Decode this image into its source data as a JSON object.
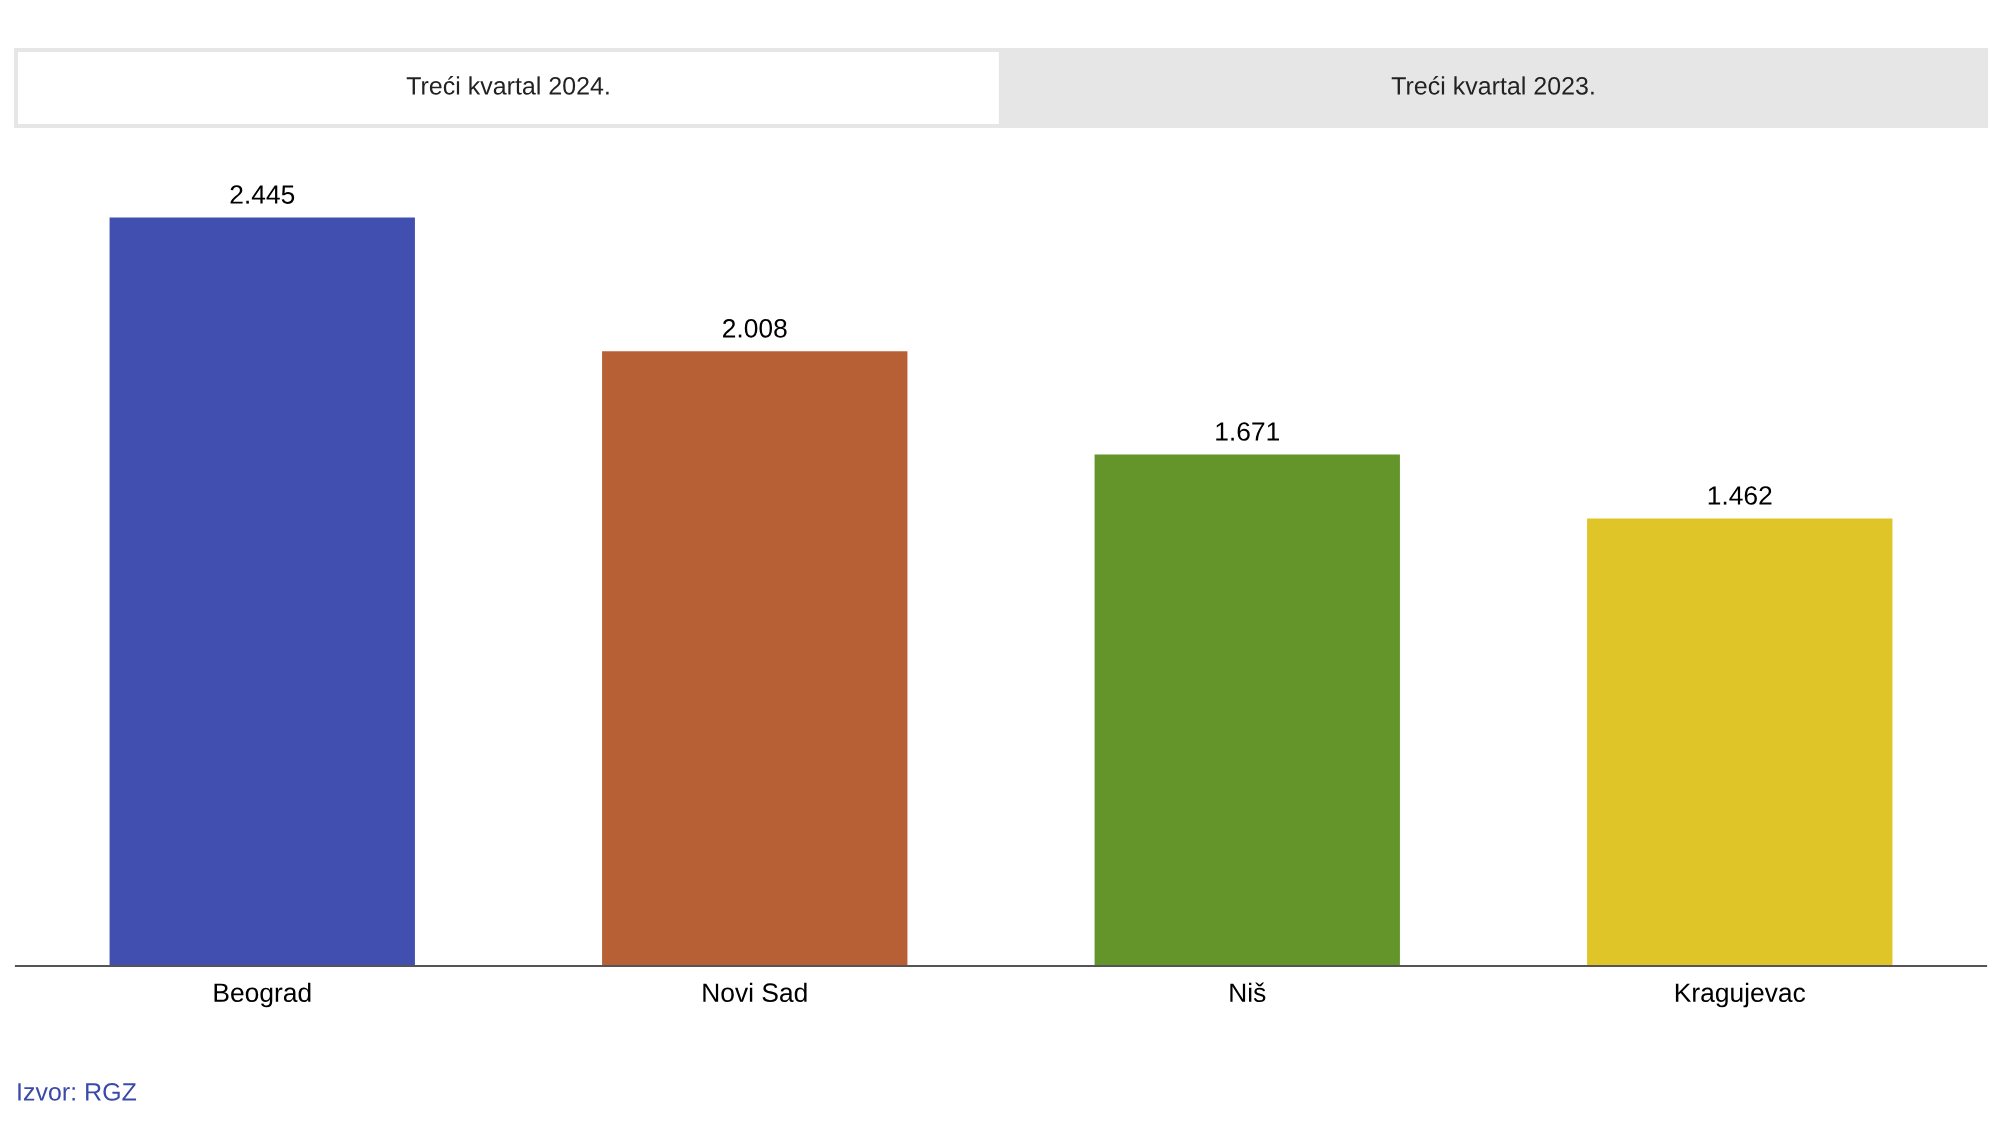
{
  "chart_data": {
    "type": "bar",
    "categories": [
      "Beograd",
      "Novi Sad",
      "Niš",
      "Kragujevac"
    ],
    "values": [
      2445,
      2008,
      1671,
      1462
    ],
    "value_labels": [
      "2.445",
      "2.008",
      "1.671",
      "1.462"
    ],
    "colors": [
      "#404fb0",
      "#b86035",
      "#64952a",
      "#dfc527"
    ],
    "annotations": [
      "Treći kvartal 2024.",
      "Treći kvartal 2023.",
      "Izvor: RGZ"
    ],
    "grid": false,
    "legend": false
  }
}
